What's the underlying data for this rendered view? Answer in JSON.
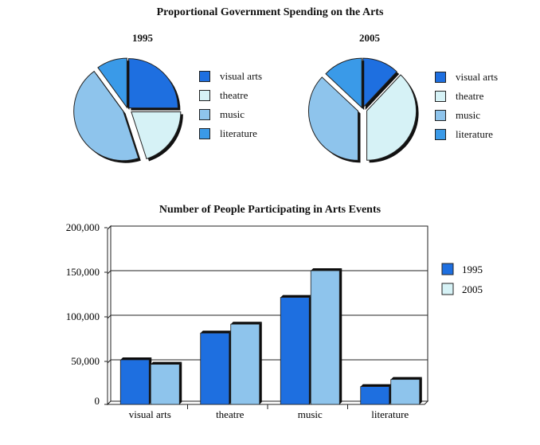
{
  "chart_data": [
    {
      "type": "pie",
      "title": "Proportional Government Spending on the Arts",
      "subtitle": "1995",
      "series": [
        {
          "name": "visual arts",
          "value": 25
        },
        {
          "name": "theatre",
          "value": 20
        },
        {
          "name": "music",
          "value": 45
        },
        {
          "name": "literature",
          "value": 10
        }
      ]
    },
    {
      "type": "pie",
      "subtitle": "2005",
      "series": [
        {
          "name": "visual arts",
          "value": 12
        },
        {
          "name": "theatre",
          "value": 38
        },
        {
          "name": "music",
          "value": 37
        },
        {
          "name": "literature",
          "value": 13
        }
      ]
    },
    {
      "type": "bar",
      "title": "Number of People Participating in Arts Events",
      "categories": [
        "visual arts",
        "theatre",
        "music",
        "literature"
      ],
      "series": [
        {
          "name": "1995",
          "values": [
            50000,
            80000,
            120000,
            20000
          ]
        },
        {
          "name": "2005",
          "values": [
            45000,
            90000,
            150000,
            28000
          ]
        }
      ],
      "yticks": [
        "0",
        "50,000",
        "100,000",
        "150,000",
        "200,000"
      ],
      "ylim": [
        0,
        200000
      ],
      "grid": true,
      "legend": "right"
    }
  ],
  "colors": {
    "visual arts": "#1e6fe0",
    "theatre": "#d6f2f6",
    "music": "#8ec4ec",
    "literature": "#3a9ae8",
    "bar_1995": "#1e6fe0",
    "bar_2005": "#8ec4ec",
    "legend_2005": "#d6f2f6"
  }
}
